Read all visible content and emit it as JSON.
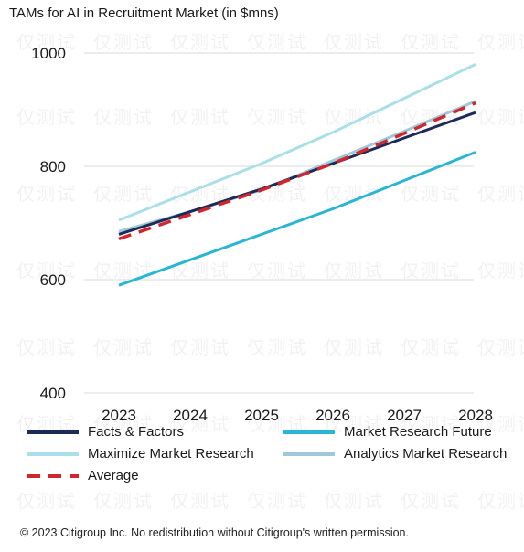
{
  "title": "TAMs for AI in Recruitment Market (in $mns)",
  "footer": "© 2023 Citigroup Inc. No redistribution without Citigroup's written permission.",
  "watermark_text": "仅测试",
  "chart_data": {
    "type": "line",
    "title": "TAMs for AI in Recruitment Market (in $mns)",
    "xlabel": "",
    "ylabel": "",
    "x": [
      "2023",
      "2024",
      "2025",
      "2026",
      "2027",
      "2028"
    ],
    "yticks": [
      "400",
      "600",
      "800",
      "1000"
    ],
    "ylim": [
      400,
      1000
    ],
    "grid": "horizontal",
    "legend_position": "bottom",
    "series": [
      {
        "name": "Facts & Factors",
        "color": "#1b2a57",
        "style": "solid",
        "values": [
          680,
          720,
          760,
          805,
          850,
          895
        ]
      },
      {
        "name": "Market Research Future",
        "color": "#2bb5d4",
        "style": "solid",
        "values": [
          590,
          635,
          680,
          725,
          775,
          825
        ]
      },
      {
        "name": "Maximize Market Research",
        "color": "#a9dfe8",
        "style": "solid",
        "values": [
          705,
          755,
          805,
          860,
          920,
          980
        ]
      },
      {
        "name": "Analytics Market Research",
        "color": "#9fc9d8",
        "style": "solid",
        "values": [
          685,
          720,
          758,
          810,
          862,
          915
        ]
      },
      {
        "name": "Average",
        "color": "#d1262e",
        "style": "dashed",
        "values": [
          672,
          715,
          758,
          805,
          858,
          912
        ]
      }
    ]
  }
}
